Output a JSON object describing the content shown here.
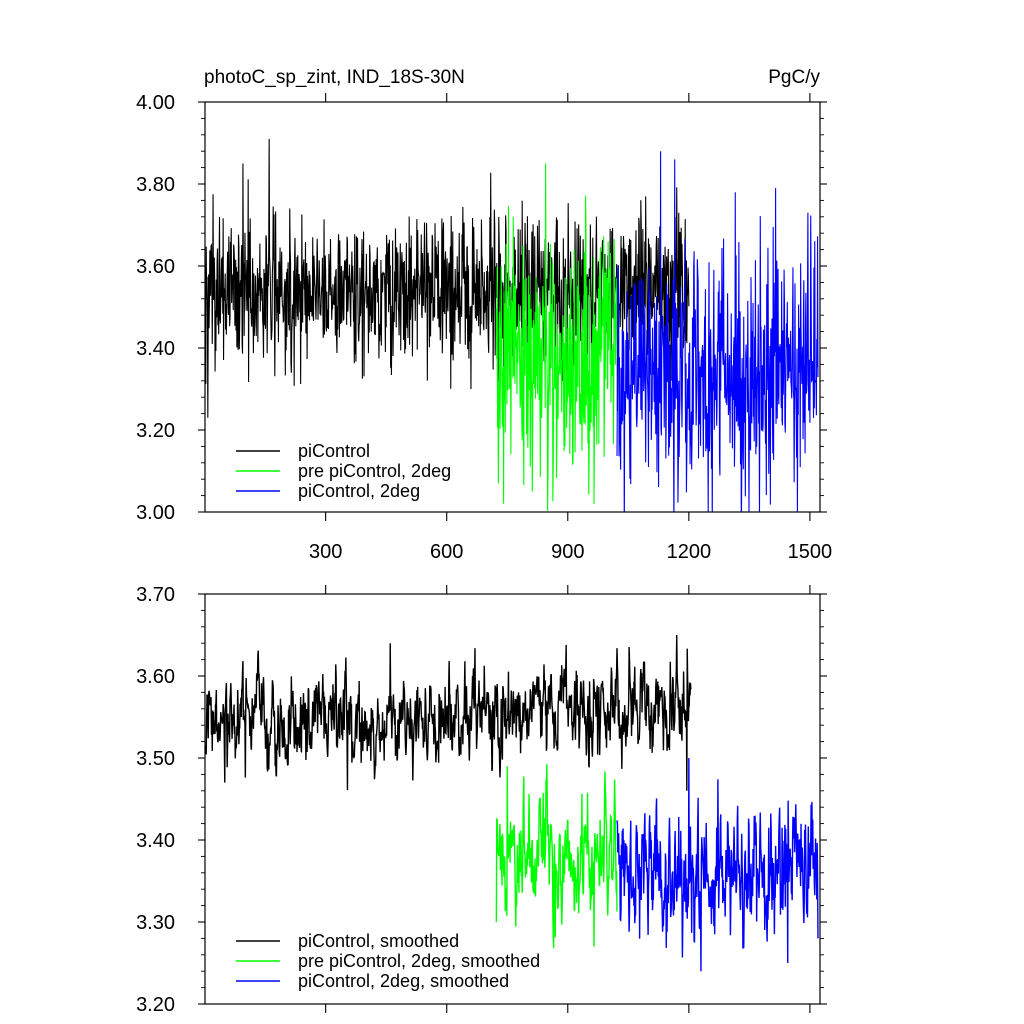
{
  "chart_data": [
    {
      "type": "line",
      "title": "photoC_sp_zint, IND_18S-30N",
      "units": "PgC/y",
      "xlabel": "",
      "ylabel": "",
      "xlim": [
        1,
        1525
      ],
      "ylim": [
        3.0,
        4.0
      ],
      "xticks": [
        300,
        600,
        900,
        1200,
        1500
      ],
      "xtick_labels": [
        "300",
        "600",
        "900",
        "1200",
        "1500"
      ],
      "yticks": [
        3.0,
        3.2,
        3.4,
        3.6,
        3.8,
        4.0
      ],
      "ytick_labels": [
        "3.00",
        "3.20",
        "3.40",
        "3.60",
        "3.80",
        "4.00"
      ],
      "grid": false,
      "legend_position": "bottom-left",
      "series": [
        {
          "name": "piControl",
          "color": "#000000",
          "x_range": [
            1,
            1200
          ],
          "mean": 3.54,
          "amplitude": 0.09,
          "peaks": [
            [
              8,
              3.23
            ],
            [
              95,
              3.85
            ],
            [
              160,
              3.91
            ],
            [
              660,
              3.3
            ],
            [
              1175,
              3.73
            ]
          ]
        },
        {
          "name": "pre piControl, 2deg",
          "color": "#00ff00",
          "x_range": [
            723,
            1022
          ],
          "mean": 3.37,
          "amplitude": 0.14,
          "peaks": [
            [
              728,
              3.07
            ],
            [
              765,
              3.72
            ],
            [
              812,
              3.05
            ],
            [
              845,
              3.85
            ],
            [
              965,
              3.02
            ],
            [
              1000,
              3.66
            ]
          ]
        },
        {
          "name": "piControl, 2deg",
          "color": "#0000ff",
          "x_range": [
            1022,
            1520
          ],
          "mean": 3.34,
          "amplitude": 0.15,
          "peaks": [
            [
              1130,
              3.88
            ],
            [
              1165,
              3.86
            ],
            [
              1248,
              3.0
            ],
            [
              1315,
              3.78
            ],
            [
              1415,
              3.79
            ],
            [
              1495,
              3.73
            ]
          ]
        }
      ]
    },
    {
      "type": "line",
      "title": "",
      "xlabel": "",
      "ylabel": "",
      "xlim": [
        1,
        1525
      ],
      "ylim": [
        3.2,
        3.7
      ],
      "xticks": [
        300,
        600,
        900,
        1200,
        1500
      ],
      "yticks": [
        3.2,
        3.3,
        3.4,
        3.5,
        3.6,
        3.7
      ],
      "ytick_labels": [
        "3.20",
        "3.30",
        "3.40",
        "3.50",
        "3.60",
        "3.70"
      ],
      "grid": false,
      "legend_position": "bottom-left",
      "series": [
        {
          "name": "piControl, smoothed",
          "color": "#000000",
          "x_range": [
            1,
            1205
          ],
          "mean": 3.55,
          "amplitude": 0.03,
          "drift": 0.03,
          "peaks": [
            [
              1,
              3.51
            ],
            [
              50,
              3.47
            ],
            [
              460,
              3.64
            ],
            [
              1170,
              3.65
            ],
            [
              1195,
              3.46
            ]
          ]
        },
        {
          "name": "pre piControl, 2deg, smoothed",
          "color": "#00ff00",
          "x_range": [
            723,
            1022
          ],
          "mean": 3.38,
          "amplitude": 0.04,
          "peaks": [
            [
              723,
              3.3
            ],
            [
              750,
              3.49
            ],
            [
              965,
              3.27
            ]
          ]
        },
        {
          "name": "piControl, 2deg, smoothed",
          "color": "#0000ff",
          "x_range": [
            1022,
            1520
          ],
          "mean": 3.36,
          "amplitude": 0.045,
          "peaks": [
            [
              1200,
              3.5
            ],
            [
              1230,
              3.24
            ],
            [
              1445,
              3.25
            ],
            [
              1520,
              3.28
            ]
          ]
        }
      ]
    }
  ]
}
